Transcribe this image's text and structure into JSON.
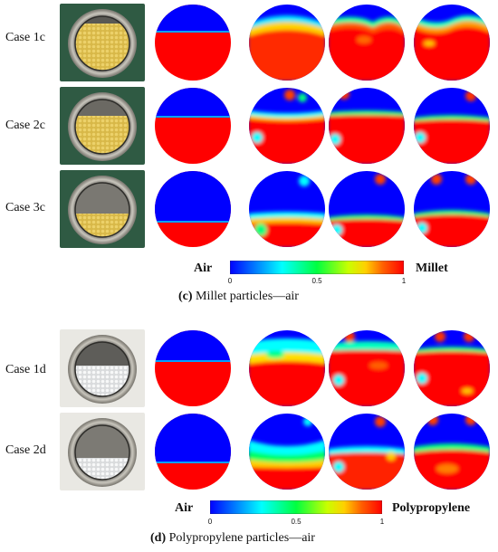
{
  "panel_c": {
    "rows": [
      "Case 1c",
      "Case 2c",
      "Case 3c"
    ],
    "colorbar": {
      "left_label": "Air",
      "right_label": "Millet",
      "ticks": [
        "0",
        "0.5",
        "1"
      ]
    },
    "caption": {
      "tag": "(c)",
      "text": " Millet particles—air"
    }
  },
  "panel_d": {
    "rows": [
      "Case 1d",
      "Case 2d"
    ],
    "colorbar": {
      "left_label": "Air",
      "right_label": "Polypropylene",
      "ticks": [
        "0",
        "0.5",
        "1"
      ]
    },
    "caption": {
      "tag": "(d)",
      "text": " Polypropylene particles—air"
    }
  },
  "colors": {
    "air": "#0000ff",
    "particles": "#ff0000",
    "colormap": [
      "#0000ff",
      "#0096ff",
      "#00ffff",
      "#00ff64",
      "#b4ff00",
      "#ffff00",
      "#ff8c00",
      "#ff0000"
    ]
  }
}
